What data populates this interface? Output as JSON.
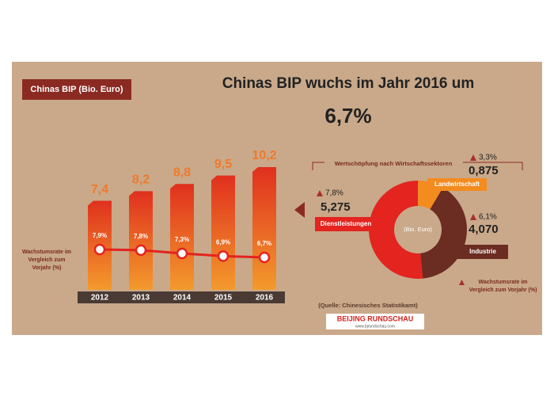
{
  "header": {
    "title": "Chinas BIP wuchs im Jahr 2016 um",
    "value": "6,7%"
  },
  "chart_data": [
    {
      "type": "bar",
      "title": "Chinas BIP (Bio. Euro)",
      "categories": [
        "2012",
        "2013",
        "2014",
        "2015",
        "2016"
      ],
      "values": [
        7.4,
        8.2,
        8.8,
        9.5,
        10.2
      ],
      "value_labels": [
        "7,4",
        "8,2",
        "8,8",
        "9,5",
        "10,2"
      ],
      "rate_values": [
        7.9,
        7.8,
        7.3,
        6.9,
        6.7
      ],
      "rate_labels": [
        "7,9%",
        "7,8%",
        "7,3%",
        "6,9%",
        "6,7%"
      ],
      "rate_label": "Wachstumsrate im Vergleich zum Vorjahr (%)",
      "color": "#e0301e",
      "color_bottom": "#f39a2c",
      "rate_color": "#e3241f"
    },
    {
      "type": "pie",
      "title": "Wertschöpfung nach Wirtschaftssektoren",
      "center_label": "(Bio. Euro)",
      "categories": [
        "Dienstleistungen",
        "Landwirtschaft",
        "Industrie"
      ],
      "values": [
        5.275,
        0.875,
        4.07
      ],
      "value_labels": [
        "5,275",
        "0,875",
        "4,070"
      ],
      "growth_values": [
        7.8,
        3.3,
        6.1
      ],
      "growth_labels": [
        "7,8%",
        "3,3%",
        "6,1%"
      ],
      "growth_note": "Wachstumsrate im Vergleich zum Vorjahr (%)",
      "colors": [
        "#e3241f",
        "#f38b1f",
        "#6b2c22"
      ]
    }
  ],
  "source": "(Quelle: Chinesisches Statistikamt)",
  "logo": {
    "name": "BEIJING RUNDSCHAU",
    "url": "www.bjrundschau.com"
  }
}
